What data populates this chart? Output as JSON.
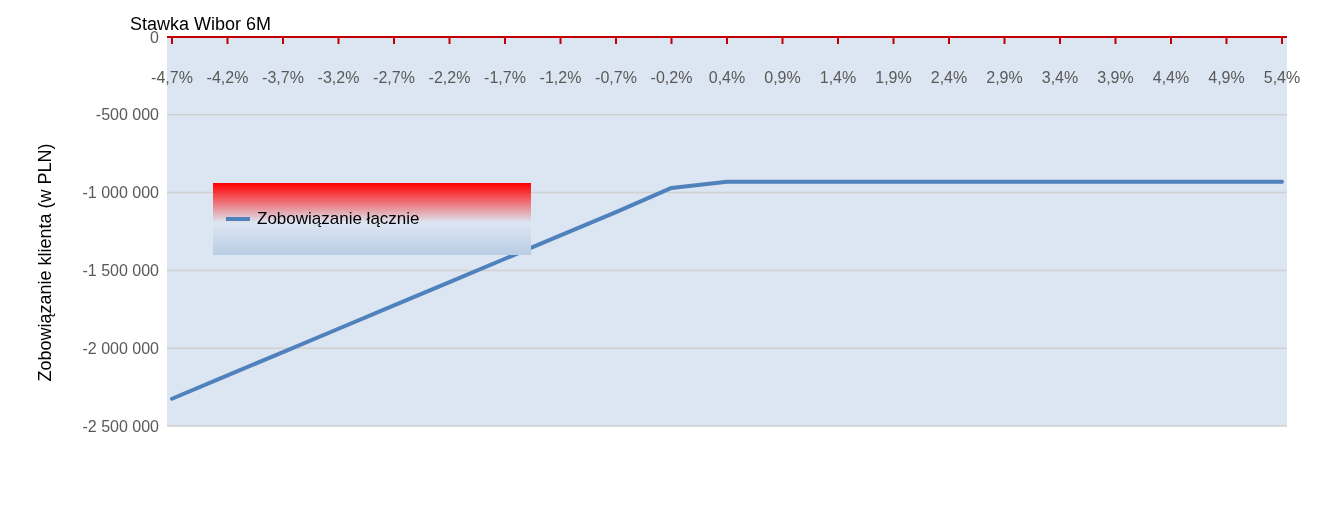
{
  "chart_data": {
    "type": "line",
    "title": "Stawka Wibor 6M",
    "ylabel": "Zobowiązanie  klienta (w PLN)",
    "categories": [
      "-4,7%",
      "-4,2%",
      "-3,7%",
      "-3,2%",
      "-2,7%",
      "-2,2%",
      "-1,7%",
      "-1,2%",
      "-0,7%",
      "-0,2%",
      "0,4%",
      "0,9%",
      "1,4%",
      "1,9%",
      "2,4%",
      "2,9%",
      "3,4%",
      "3,9%",
      "4,4%",
      "4,9%",
      "5,4%"
    ],
    "series": [
      {
        "name": "Zobowiązanie łącznie",
        "color": "#4f81bd",
        "values": [
          -2325000,
          -2175000,
          -2025000,
          -1875000,
          -1725000,
          -1575000,
          -1425000,
          -1275000,
          -1125000,
          -970000,
          -930000,
          -930000,
          -930000,
          -930000,
          -930000,
          -930000,
          -930000,
          -930000,
          -930000,
          -930000,
          -930000
        ]
      }
    ],
    "ylim": [
      -2500000,
      0
    ],
    "yticks": [
      {
        "value": -2500000,
        "label": "-2 500 000"
      },
      {
        "value": -2000000,
        "label": "-2 000 000"
      },
      {
        "value": -1500000,
        "label": "-1 500 000"
      },
      {
        "value": -1000000,
        "label": "-1 000 000"
      },
      {
        "value": -500000,
        "label": "-500 000"
      },
      0
    ],
    "grid": "y",
    "legend": "top left",
    "marker": "none",
    "line_style": "solid"
  }
}
